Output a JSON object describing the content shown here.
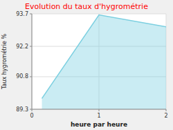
{
  "chart_data": {
    "type": "area",
    "title": "Evolution du taux d'hygrométrie",
    "x_label": "heure par heure",
    "y_label": "Taux hygrométrie %",
    "x": [
      0.15,
      1.0,
      2.0
    ],
    "values": [
      89.8,
      93.65,
      93.1
    ],
    "color": "#7bcfe0",
    "xlim": [
      0,
      2
    ],
    "xticks": [
      0,
      1,
      2
    ],
    "ylim": [
      89.3,
      93.7
    ],
    "yticks": [
      89.3,
      90.8,
      92.2,
      93.7
    ],
    "grid": true
  }
}
